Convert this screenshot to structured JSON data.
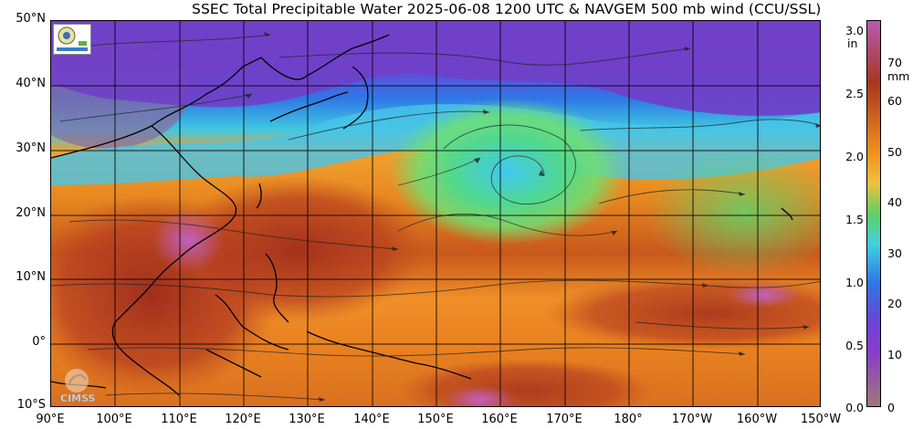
{
  "title": "SSEC Total Precipitable Water  2025-06-08 1200 UTC & NAVGEM 500 mb wind (CCU/SSL)",
  "lat_labels": [
    "50°N",
    "40°N",
    "30°N",
    "20°N",
    "10°N",
    "0°",
    "10°S"
  ],
  "lon_labels": [
    "90°E",
    "100°E",
    "110°E",
    "120°E",
    "130°E",
    "140°E",
    "150°E",
    "160°E",
    "170°E",
    "180°",
    "170°W",
    "160°W",
    "150°W"
  ],
  "colorbar": {
    "inch_unit": "in",
    "inch_ticks": [
      "3.0",
      "2.5",
      "2.0",
      "1.5",
      "1.0",
      "0.5",
      "0.0"
    ],
    "mm_unit": "mm",
    "mm_ticks": [
      "70",
      "60",
      "50",
      "40",
      "30",
      "20",
      "10",
      "0"
    ],
    "range_mm": [
      0,
      76
    ]
  },
  "logos": {
    "top_left": "SSEC logo",
    "bottom_left": "CIMSS"
  },
  "colors": {
    "very_dry": "#a07878",
    "dry_purple": "#8a3ccc",
    "blue": "#2e78e6",
    "cyan": "#40d0e0",
    "green": "#60d060",
    "orange": "#f0901c",
    "moist_red": "#a83620",
    "very_moist": "#b85ab0"
  }
}
